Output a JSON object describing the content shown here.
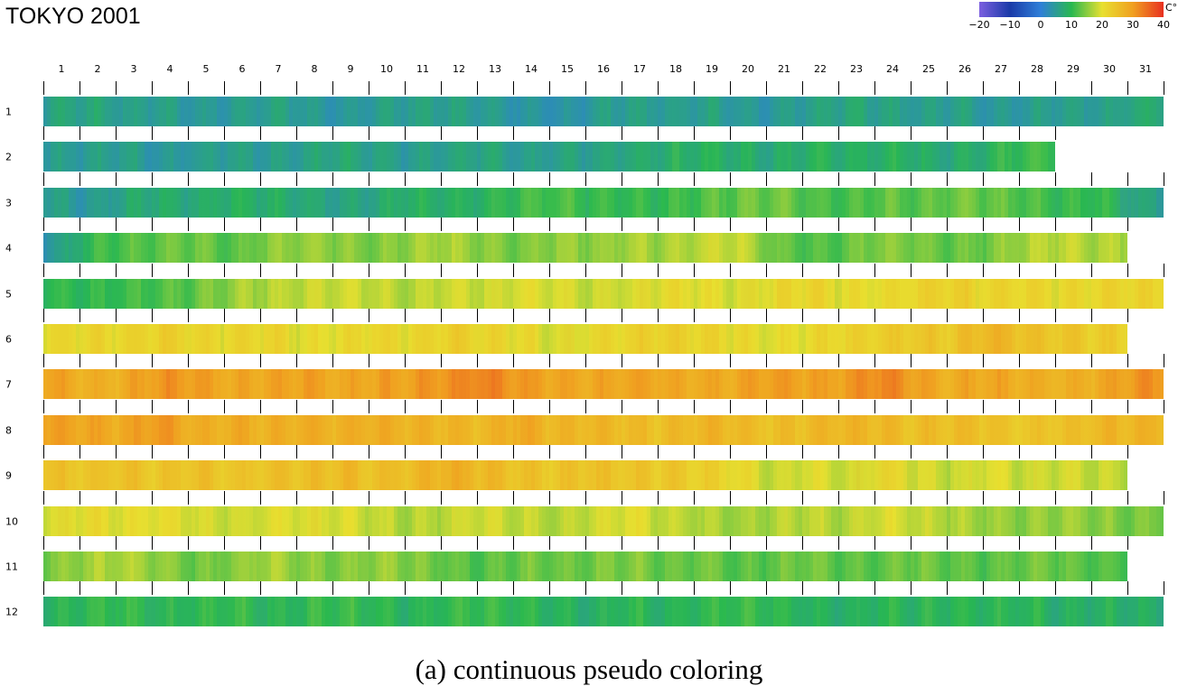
{
  "chart_data": {
    "type": "heatmap",
    "title": "TOKYO  2001",
    "caption": "(a) continuous pseudo coloring",
    "colorbar": {
      "unit": "C°",
      "ticks": [
        "-20",
        "-10",
        "0",
        "10",
        "20",
        "30",
        "40"
      ],
      "range": [
        -20,
        40
      ],
      "colors": [
        "#7b5fe0",
        "#1a3aa8",
        "#2f7fd8",
        "#28b850",
        "#e8e030",
        "#f0a020",
        "#e83020"
      ]
    },
    "x": {
      "labels": [
        "1",
        "2",
        "3",
        "4",
        "5",
        "6",
        "7",
        "8",
        "9",
        "10",
        "11",
        "12",
        "13",
        "14",
        "15",
        "16",
        "17",
        "18",
        "19",
        "20",
        "21",
        "22",
        "23",
        "24",
        "25",
        "26",
        "27",
        "28",
        "29",
        "30",
        "31"
      ]
    },
    "y": {
      "labels": [
        "1",
        "2",
        "3",
        "4",
        "5",
        "6",
        "7",
        "8",
        "9",
        "10",
        "11",
        "12"
      ]
    },
    "days_in_month": [
      31,
      28,
      31,
      30,
      31,
      30,
      31,
      31,
      30,
      31,
      30,
      31
    ],
    "daily_mean_temperature": [
      [
        6,
        7,
        5,
        6,
        4,
        5,
        6,
        5,
        4,
        5,
        6,
        6,
        5,
        4,
        3,
        5,
        6,
        5,
        6,
        5,
        4,
        6,
        7,
        6,
        5,
        6,
        4,
        5,
        6,
        5,
        7
      ],
      [
        5,
        5,
        6,
        4,
        5,
        6,
        5,
        6,
        7,
        6,
        5,
        6,
        7,
        5,
        6,
        6,
        7,
        8,
        9,
        8,
        7,
        9,
        8,
        9,
        8,
        7,
        9,
        11
      ],
      [
        6,
        4,
        7,
        8,
        7,
        9,
        8,
        7,
        6,
        7,
        9,
        8,
        9,
        11,
        12,
        10,
        11,
        10,
        12,
        13,
        14,
        12,
        11,
        13,
        12,
        14,
        13,
        12,
        10,
        11,
        6
      ],
      [
        4,
        10,
        12,
        13,
        14,
        12,
        15,
        16,
        15,
        14,
        16,
        17,
        15,
        14,
        16,
        15,
        17,
        16,
        18,
        19,
        13,
        12,
        13,
        15,
        14,
        13,
        14,
        17,
        18,
        17
      ],
      [
        10,
        10,
        11,
        12,
        13,
        16,
        17,
        18,
        19,
        18,
        17,
        19,
        18,
        20,
        19,
        18,
        19,
        21,
        20,
        19,
        21,
        22,
        20,
        21,
        22,
        23,
        21,
        22,
        21,
        22,
        22
      ],
      [
        21,
        22,
        21,
        23,
        22,
        21,
        22,
        20,
        21,
        22,
        21,
        23,
        22,
        21,
        19,
        21,
        22,
        23,
        22,
        21,
        20,
        21,
        22,
        23,
        24,
        24,
        27,
        25,
        24,
        23
      ],
      [
        30,
        27,
        28,
        31,
        30,
        28,
        29,
        30,
        28,
        29,
        30,
        31,
        33,
        30,
        29,
        28,
        30,
        29,
        28,
        29,
        30,
        29,
        30,
        33,
        29,
        28,
        29,
        28,
        27,
        28,
        31
      ],
      [
        30,
        29,
        28,
        31,
        27,
        28,
        27,
        28,
        27,
        28,
        27,
        27,
        26,
        29,
        26,
        27,
        26,
        25,
        27,
        26,
        25,
        26,
        27,
        26,
        25,
        26,
        25,
        24,
        25,
        26,
        27
      ],
      [
        25,
        24,
        25,
        24,
        25,
        24,
        25,
        25,
        26,
        25,
        26,
        28,
        26,
        25,
        24,
        25,
        24,
        24,
        23,
        21,
        18,
        20,
        18,
        22,
        19,
        18,
        20,
        18,
        19,
        18
      ],
      [
        19,
        21,
        20,
        21,
        19,
        18,
        20,
        19,
        20,
        18,
        17,
        18,
        19,
        18,
        17,
        19,
        20,
        18,
        17,
        16,
        17,
        18,
        17,
        20,
        18,
        17,
        16,
        15,
        16,
        15,
        14
      ],
      [
        14,
        16,
        17,
        15,
        13,
        15,
        17,
        15,
        14,
        16,
        15,
        13,
        12,
        14,
        13,
        14,
        15,
        13,
        14,
        12,
        13,
        14,
        12,
        13,
        14,
        13,
        12,
        14,
        13,
        12
      ],
      [
        9,
        10,
        11,
        9,
        10,
        11,
        9,
        10,
        11,
        10,
        9,
        10,
        11,
        10,
        9,
        8,
        10,
        9,
        10,
        11,
        10,
        9,
        8,
        10,
        9,
        10,
        9,
        10,
        8,
        9,
        8
      ]
    ]
  }
}
